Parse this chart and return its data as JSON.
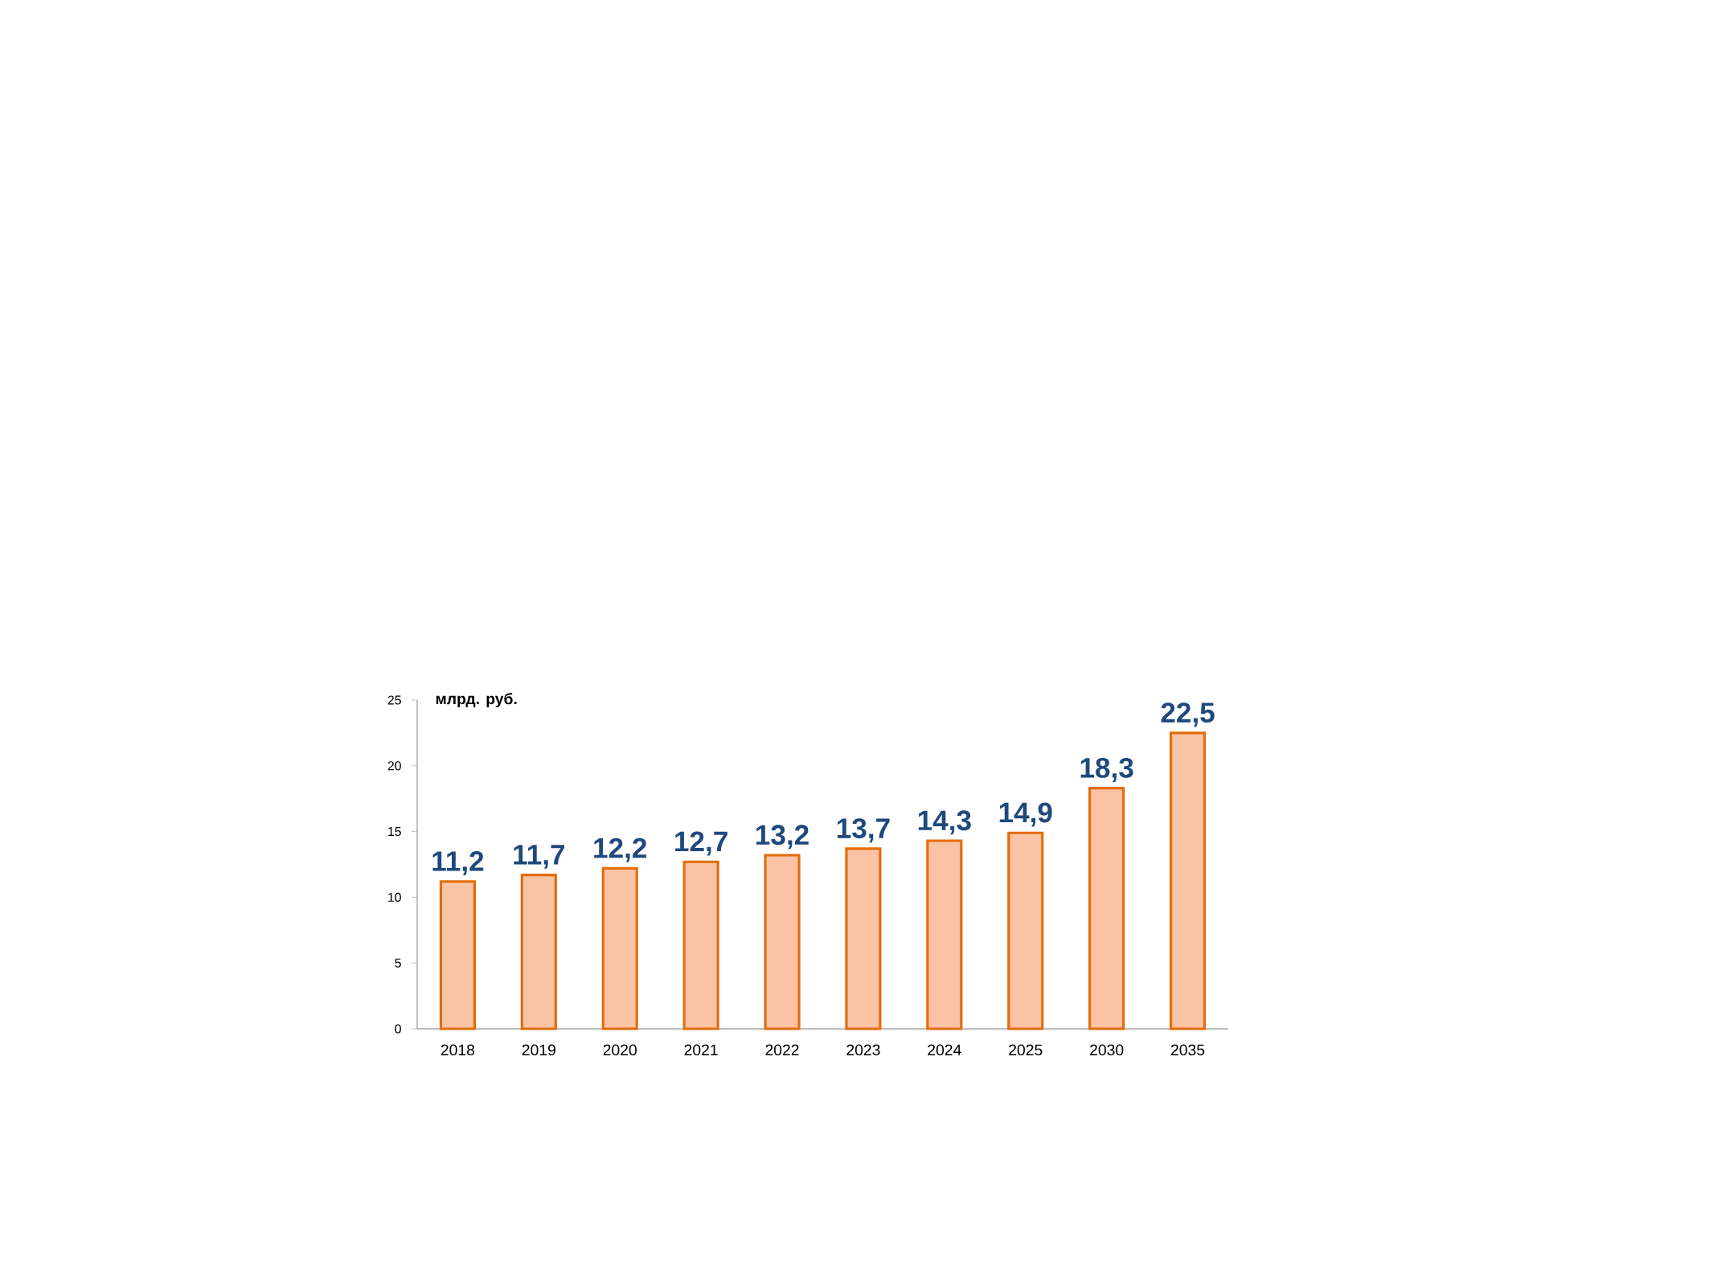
{
  "chart_data": {
    "type": "bar",
    "ylabel": "млрд. руб.",
    "categories": [
      "2018",
      "2019",
      "2020",
      "2021",
      "2022",
      "2023",
      "2024",
      "2025",
      "2030",
      "2035"
    ],
    "values": [
      11.2,
      11.7,
      12.2,
      12.7,
      13.2,
      13.7,
      14.3,
      14.9,
      18.3,
      22.5
    ],
    "value_labels": [
      "11,2",
      "11,7",
      "12,2",
      "12,7",
      "13,2",
      "13,7",
      "14,3",
      "14,9",
      "18,3",
      "22,5"
    ],
    "color": "#fbc3a5",
    "ylim": [
      0,
      25
    ],
    "yticks": [
      0,
      5,
      10,
      15,
      20,
      25
    ],
    "grid": false
  }
}
